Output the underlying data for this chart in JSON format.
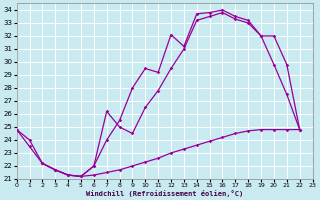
{
  "background_color": "#c8eaf0",
  "grid_color": "#ffffff",
  "line_color": "#990099",
  "xlim": [
    0,
    23
  ],
  "ylim": [
    21,
    34.5
  ],
  "xticks": [
    0,
    1,
    2,
    3,
    4,
    5,
    6,
    7,
    8,
    9,
    10,
    11,
    12,
    13,
    14,
    15,
    16,
    17,
    18,
    19,
    20,
    21,
    22,
    23
  ],
  "yticks": [
    21,
    22,
    23,
    24,
    25,
    26,
    27,
    28,
    29,
    30,
    31,
    32,
    33,
    34
  ],
  "xlabel": "Windchill (Refroidissement éolien,°C)",
  "curve1_x": [
    0,
    1,
    2,
    3,
    4,
    5,
    6,
    7,
    8,
    9,
    10,
    11,
    12,
    13,
    14,
    15,
    16,
    17,
    18,
    19,
    20,
    21,
    22
  ],
  "curve1_y": [
    24.8,
    24.0,
    22.2,
    21.7,
    21.3,
    21.2,
    22.0,
    24.0,
    25.5,
    28.0,
    29.5,
    29.2,
    32.1,
    31.2,
    33.7,
    33.8,
    34.0,
    33.5,
    33.2,
    32.0,
    29.8,
    27.5,
    24.8
  ],
  "curve2_x": [
    0,
    1,
    2,
    3,
    4,
    5,
    6,
    7,
    8,
    9,
    10,
    11,
    12,
    13,
    14,
    15,
    16,
    17,
    18,
    19,
    20,
    21,
    22
  ],
  "curve2_y": [
    24.8,
    23.5,
    22.2,
    21.7,
    21.3,
    21.2,
    21.3,
    21.5,
    21.7,
    22.0,
    22.3,
    22.6,
    23.0,
    23.3,
    23.6,
    23.9,
    24.2,
    24.5,
    24.7,
    24.8,
    24.8,
    24.8,
    24.8
  ],
  "curve3_x": [
    2,
    3,
    4,
    5,
    6,
    7,
    8,
    9,
    10,
    11,
    12,
    13,
    14,
    15,
    16,
    17,
    18,
    19,
    20,
    21,
    22
  ],
  "curve3_y": [
    22.2,
    21.7,
    21.3,
    21.2,
    22.0,
    26.2,
    25.0,
    24.5,
    26.5,
    27.8,
    29.5,
    31.0,
    33.2,
    33.5,
    33.8,
    33.3,
    33.0,
    32.0,
    32.0,
    29.8,
    24.8
  ]
}
